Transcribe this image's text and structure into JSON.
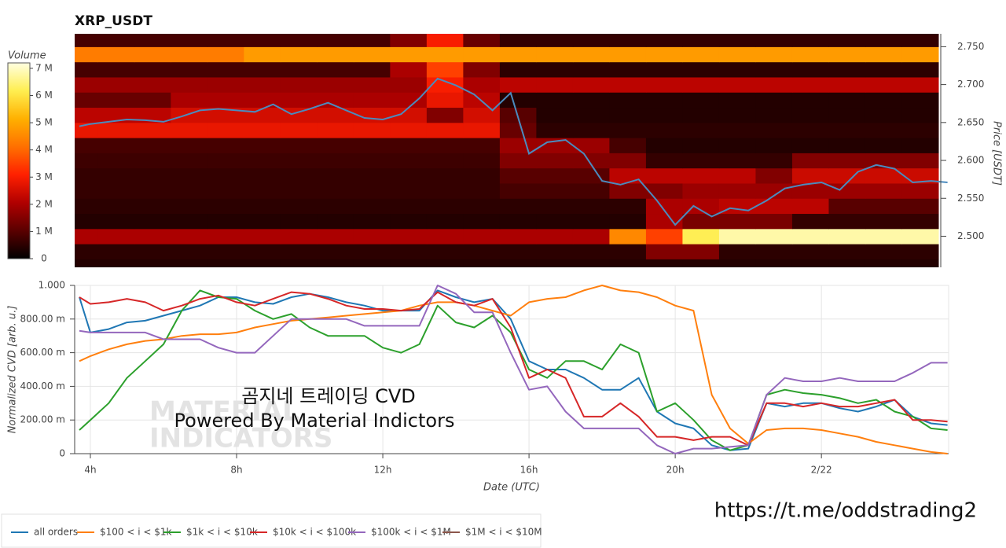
{
  "chart_data": [
    {
      "type": "heatmap",
      "title": "XRP_USDT",
      "colorbar_label": "Volume",
      "y_label": "Price [USDT]",
      "x_bins": [
        3.2,
        4.2,
        5.2,
        6.2,
        7.2,
        8.2,
        9.2,
        10.2,
        11.2,
        12.2,
        13.2,
        14.2,
        15.2,
        16.2,
        17.2,
        18.2,
        19.2,
        20.2,
        21.2,
        22.2,
        23.2,
        24.2,
        25.2,
        26.2,
        27.2
      ],
      "y_bins": [
        2.45,
        2.47,
        2.49,
        2.51,
        2.53,
        2.55,
        2.57,
        2.59,
        2.61,
        2.63,
        2.65,
        2.67,
        2.69,
        2.71,
        2.73,
        2.75,
        2.77
      ],
      "z": [
        [
          400000.0,
          400000.0,
          400000.0,
          400000.0,
          400000.0,
          400000.0,
          400000.0,
          400000.0,
          400000.0,
          400000.0,
          400000.0,
          400000.0,
          400000.0,
          400000.0,
          400000.0,
          400000.0,
          400000.0,
          400000.0,
          400000.0,
          400000.0,
          400000.0,
          400000.0,
          400000.0,
          400000.0
        ],
        [
          500000.0,
          500000.0,
          500000.0,
          500000.0,
          500000.0,
          500000.0,
          500000.0,
          500000.0,
          500000.0,
          500000.0,
          500000.0,
          500000.0,
          500000.0,
          500000.0,
          500000.0,
          500000.0,
          1500000.0,
          1500000.0,
          500000.0,
          500000.0,
          500000.0,
          500000.0,
          500000.0,
          500000.0
        ],
        [
          2000000.0,
          2000000.0,
          2000000.0,
          2000000.0,
          2000000.0,
          2000000.0,
          2000000.0,
          2000000.0,
          2000000.0,
          2000000.0,
          2000000.0,
          2000000.0,
          2000000.0,
          2000000.0,
          2000000.0,
          4500000.0,
          3500000.0,
          6200000.0,
          6800000.0,
          6800000.0,
          6800000.0,
          6800000.0,
          6800000.0,
          6800000.0
        ],
        [
          400000.0,
          400000.0,
          400000.0,
          400000.0,
          400000.0,
          400000.0,
          400000.0,
          400000.0,
          400000.0,
          400000.0,
          400000.0,
          400000.0,
          400000.0,
          400000.0,
          400000.0,
          400000.0,
          2000000.0,
          1400000.0,
          1400000.0,
          1400000.0,
          600000.0,
          600000.0,
          600000.0,
          600000.0
        ],
        [
          500000.0,
          500000.0,
          500000.0,
          500000.0,
          500000.0,
          500000.0,
          500000.0,
          500000.0,
          500000.0,
          500000.0,
          500000.0,
          500000.0,
          500000.0,
          500000.0,
          500000.0,
          500000.0,
          2000000.0,
          2000000.0,
          2200000.0,
          2200000.0,
          2200000.0,
          1000000.0,
          1000000.0,
          1000000.0
        ],
        [
          600000.0,
          600000.0,
          600000.0,
          600000.0,
          600000.0,
          600000.0,
          600000.0,
          600000.0,
          600000.0,
          600000.0,
          600000.0,
          600000.0,
          800000.0,
          800000.0,
          800000.0,
          1500000.0,
          1500000.0,
          1800000.0,
          1800000.0,
          1800000.0,
          1800000.0,
          1800000.0,
          1800000.0,
          1800000.0
        ],
        [
          600000.0,
          600000.0,
          600000.0,
          600000.0,
          600000.0,
          600000.0,
          600000.0,
          600000.0,
          600000.0,
          600000.0,
          600000.0,
          600000.0,
          1000000.0,
          1000000.0,
          1000000.0,
          2200000.0,
          2200000.0,
          2200000.0,
          2200000.0,
          1500000.0,
          2400000.0,
          2400000.0,
          2400000.0,
          2400000.0
        ],
        [
          700000.0,
          700000.0,
          700000.0,
          700000.0,
          700000.0,
          700000.0,
          700000.0,
          700000.0,
          700000.0,
          700000.0,
          700000.0,
          700000.0,
          1500000.0,
          1500000.0,
          1500000.0,
          1500000.0,
          600000.0,
          600000.0,
          600000.0,
          600000.0,
          1500000.0,
          1500000.0,
          1500000.0,
          1500000.0
        ],
        [
          800000.0,
          800000.0,
          800000.0,
          800000.0,
          800000.0,
          800000.0,
          800000.0,
          800000.0,
          800000.0,
          800000.0,
          800000.0,
          800000.0,
          1800000.0,
          1800000.0,
          1800000.0,
          800000.0,
          400000.0,
          400000.0,
          400000.0,
          400000.0,
          400000.0,
          400000.0,
          400000.0,
          400000.0
        ],
        [
          2800000.0,
          2800000.0,
          2800000.0,
          2800000.0,
          2800000.0,
          2800000.0,
          2800000.0,
          2800000.0,
          2800000.0,
          2800000.0,
          2800000.0,
          2800000.0,
          1200000.0,
          500000.0,
          500000.0,
          500000.0,
          500000.0,
          500000.0,
          500000.0,
          500000.0,
          500000.0,
          500000.0,
          500000.0,
          500000.0
        ],
        [
          2200000.0,
          2200000.0,
          2200000.0,
          2500000.0,
          2500000.0,
          2500000.0,
          2500000.0,
          2500000.0,
          2500000.0,
          2500000.0,
          1500000.0,
          2500000.0,
          1000000.0,
          400000.0,
          400000.0,
          400000.0,
          400000.0,
          400000.0,
          400000.0,
          400000.0,
          400000.0,
          400000.0,
          400000.0,
          400000.0
        ],
        [
          1200000.0,
          1200000.0,
          1200000.0,
          2000000.0,
          2000000.0,
          2000000.0,
          2000000.0,
          2000000.0,
          2000000.0,
          2000000.0,
          2800000.0,
          2200000.0,
          400000.0,
          400000.0,
          400000.0,
          400000.0,
          400000.0,
          400000.0,
          400000.0,
          400000.0,
          400000.0,
          400000.0,
          400000.0,
          400000.0
        ],
        [
          1800000.0,
          1800000.0,
          1800000.0,
          1800000.0,
          1800000.0,
          1800000.0,
          1800000.0,
          1800000.0,
          1800000.0,
          1800000.0,
          3000000.0,
          2000000.0,
          2200000.0,
          2200000.0,
          2200000.0,
          2200000.0,
          2200000.0,
          2200000.0,
          2200000.0,
          2200000.0,
          2200000.0,
          2200000.0,
          2200000.0,
          2200000.0
        ],
        [
          800000.0,
          800000.0,
          800000.0,
          800000.0,
          800000.0,
          800000.0,
          800000.0,
          800000.0,
          800000.0,
          2000000.0,
          3500000.0,
          1500000.0,
          500000.0,
          500000.0,
          500000.0,
          500000.0,
          500000.0,
          500000.0,
          500000.0,
          500000.0,
          500000.0,
          500000.0,
          500000.0,
          500000.0
        ],
        [
          4300000.0,
          4300000.0,
          4300000.0,
          4300000.0,
          4300000.0,
          4800000.0,
          4800000.0,
          4800000.0,
          4800000.0,
          4800000.0,
          4800000.0,
          4800000.0,
          4800000.0,
          4800000.0,
          4800000.0,
          4800000.0,
          4800000.0,
          4800000.0,
          4800000.0,
          4800000.0,
          4800000.0,
          4800000.0,
          4800000.0,
          4800000.0
        ],
        [
          800000.0,
          800000.0,
          800000.0,
          800000.0,
          800000.0,
          800000.0,
          800000.0,
          800000.0,
          800000.0,
          1500000.0,
          3000000.0,
          1200000.0,
          600000.0,
          600000.0,
          600000.0,
          600000.0,
          600000.0,
          600000.0,
          600000.0,
          600000.0,
          600000.0,
          600000.0,
          600000.0,
          600000.0
        ]
      ],
      "colors": [
        "#000000",
        "#5a0000",
        "#b00000",
        "#ff2000",
        "#ff7000",
        "#ffb000",
        "#ffee50",
        "#ffffe0"
      ],
      "clim": [
        0,
        7200000.0
      ],
      "cticks": [
        0,
        {
          "value": 1000000.0,
          "label": "1 M"
        },
        {
          "value": 2000000.0,
          "label": "2 M"
        },
        {
          "value": 3000000.0,
          "label": "3 M"
        },
        {
          "value": 4000000.0,
          "label": "4 M"
        },
        {
          "value": 5000000.0,
          "label": "5 M"
        },
        {
          "value": 6000000.0,
          "label": "6 M"
        },
        {
          "value": 7000000.0,
          "label": "7 M"
        }
      ],
      "xlim": [
        3.57,
        27.48
      ],
      "ylim": [
        2.459,
        2.767
      ],
      "yticks": [
        {
          "value": 2.5,
          "label": "2.500"
        },
        {
          "value": 2.55,
          "label": "2.550"
        },
        {
          "value": 2.6,
          "label": "2.600"
        },
        {
          "value": 2.65,
          "label": "2.650"
        },
        {
          "value": 2.7,
          "label": "2.700"
        },
        {
          "value": 2.75,
          "label": "2.750"
        }
      ],
      "line": {
        "color": "#4b8bbe",
        "x": [
          3.7,
          4,
          4.5,
          5,
          5.5,
          6,
          6.5,
          7,
          7.5,
          8,
          8.5,
          9,
          9.5,
          10,
          10.5,
          11,
          11.5,
          12,
          12.5,
          13,
          13.5,
          14,
          14.5,
          15,
          15.5,
          16,
          16.5,
          17,
          17.5,
          18,
          18.5,
          19,
          19.5,
          20,
          20.5,
          21,
          21.5,
          22,
          22.5,
          23,
          23.5,
          24,
          24.5,
          25,
          25.5,
          26,
          26.5,
          27,
          27.45
        ],
        "values": [
          2.645,
          2.648,
          2.651,
          2.654,
          2.653,
          2.651,
          2.658,
          2.666,
          2.668,
          2.666,
          2.664,
          2.674,
          2.661,
          2.668,
          2.676,
          2.666,
          2.656,
          2.654,
          2.661,
          2.682,
          2.708,
          2.699,
          2.687,
          2.666,
          2.689,
          2.609,
          2.624,
          2.627,
          2.609,
          2.573,
          2.568,
          2.575,
          2.547,
          2.515,
          2.54,
          2.526,
          2.537,
          2.534,
          2.547,
          2.563,
          2.568,
          2.571,
          2.561,
          2.585,
          2.594,
          2.589,
          2.571,
          2.573,
          2.571
        ]
      }
    },
    {
      "type": "line",
      "x_label": "Date (UTC)",
      "y_label": "Normalized CVD [arb. u.]",
      "x": [
        3.7,
        4,
        4.5,
        5,
        5.5,
        6,
        6.5,
        7,
        7.5,
        8,
        8.5,
        9,
        9.5,
        10,
        10.5,
        11,
        11.5,
        12,
        12.5,
        13,
        13.5,
        14,
        14.5,
        15,
        15.5,
        16,
        16.5,
        17,
        17.5,
        18,
        18.5,
        19,
        19.5,
        20,
        20.5,
        21,
        21.5,
        22,
        22.5,
        23,
        23.5,
        24,
        24.5,
        25,
        25.5,
        26,
        26.5,
        27,
        27.45
      ],
      "xlim": [
        3.57,
        27.48
      ],
      "ylim": [
        0,
        1
      ],
      "xticks": [
        {
          "value": 4,
          "label": "4h"
        },
        {
          "value": 8,
          "label": "8h"
        },
        {
          "value": 12,
          "label": "12h"
        },
        {
          "value": 16,
          "label": "16h"
        },
        {
          "value": 20,
          "label": "20h"
        },
        {
          "value": 24,
          "label": "2/22"
        }
      ],
      "yticks": [
        0,
        {
          "value": 0.2,
          "label": "200.00 m"
        },
        {
          "value": 0.4,
          "label": "400.00 m"
        },
        {
          "value": 0.6,
          "label": "600.00 m"
        },
        {
          "value": 0.8,
          "label": "800.00 m"
        },
        {
          "value": 1,
          "label": "1.000"
        }
      ],
      "grid": true,
      "legend": "bottom-left",
      "series": [
        {
          "name": "all orders",
          "color": "#1f77b4",
          "values": [
            0.93,
            0.72,
            0.74,
            0.78,
            0.79,
            0.82,
            0.85,
            0.88,
            0.93,
            0.93,
            0.9,
            0.89,
            0.93,
            0.95,
            0.93,
            0.9,
            0.88,
            0.85,
            0.85,
            0.85,
            0.97,
            0.93,
            0.9,
            0.92,
            0.8,
            0.55,
            0.5,
            0.5,
            0.45,
            0.38,
            0.38,
            0.45,
            0.25,
            0.18,
            0.15,
            0.05,
            0.02,
            0.03,
            0.3,
            0.28,
            0.3,
            0.3,
            0.27,
            0.25,
            0.28,
            0.32,
            0.22,
            0.18,
            0.17
          ]
        },
        {
          "name": "$100 < i < $1k",
          "color": "#ff7f0e",
          "values": [
            0.55,
            0.58,
            0.62,
            0.65,
            0.67,
            0.68,
            0.7,
            0.71,
            0.71,
            0.72,
            0.75,
            0.77,
            0.79,
            0.8,
            0.81,
            0.82,
            0.83,
            0.84,
            0.85,
            0.88,
            0.9,
            0.9,
            0.88,
            0.85,
            0.82,
            0.9,
            0.92,
            0.93,
            0.97,
            1,
            0.97,
            0.96,
            0.93,
            0.88,
            0.85,
            0.35,
            0.15,
            0.06,
            0.14,
            0.15,
            0.15,
            0.14,
            0.12,
            0.1,
            0.07,
            0.05,
            0.03,
            0.01,
            0
          ]
        },
        {
          "name": "$1k < i < $10k",
          "color": "#2ca02c",
          "values": [
            0.14,
            0.2,
            0.3,
            0.45,
            0.55,
            0.65,
            0.85,
            0.97,
            0.93,
            0.92,
            0.85,
            0.8,
            0.83,
            0.75,
            0.7,
            0.7,
            0.7,
            0.63,
            0.6,
            0.65,
            0.88,
            0.78,
            0.75,
            0.82,
            0.72,
            0.5,
            0.45,
            0.55,
            0.55,
            0.5,
            0.65,
            0.6,
            0.25,
            0.3,
            0.2,
            0.08,
            0.02,
            0.05,
            0.35,
            0.38,
            0.36,
            0.35,
            0.33,
            0.3,
            0.32,
            0.25,
            0.22,
            0.15,
            0.14
          ]
        },
        {
          "name": "$10k < i < $100k",
          "color": "#d62728",
          "values": [
            0.93,
            0.89,
            0.9,
            0.92,
            0.9,
            0.85,
            0.88,
            0.92,
            0.94,
            0.9,
            0.88,
            0.92,
            0.96,
            0.95,
            0.92,
            0.88,
            0.86,
            0.86,
            0.85,
            0.86,
            0.96,
            0.9,
            0.88,
            0.92,
            0.75,
            0.45,
            0.5,
            0.45,
            0.22,
            0.22,
            0.3,
            0.22,
            0.1,
            0.1,
            0.08,
            0.1,
            0.1,
            0.05,
            0.3,
            0.3,
            0.28,
            0.3,
            0.28,
            0.28,
            0.3,
            0.32,
            0.2,
            0.2,
            0.19
          ]
        },
        {
          "name": "$100k < i < $1M",
          "color": "#9467bd",
          "values": [
            0.73,
            0.72,
            0.72,
            0.72,
            0.72,
            0.68,
            0.68,
            0.68,
            0.63,
            0.6,
            0.6,
            0.7,
            0.8,
            0.8,
            0.8,
            0.8,
            0.76,
            0.76,
            0.76,
            0.76,
            1,
            0.95,
            0.84,
            0.84,
            0.6,
            0.38,
            0.4,
            0.25,
            0.15,
            0.15,
            0.15,
            0.15,
            0.05,
            0,
            0.03,
            0.03,
            0.04,
            0.05,
            0.35,
            0.45,
            0.43,
            0.43,
            0.45,
            0.43,
            0.43,
            0.43,
            0.48,
            0.54,
            0.54
          ]
        },
        {
          "name": "$1M < i < $10M",
          "color": "#8c564b",
          "values": [
            null,
            null,
            null,
            null,
            null,
            null,
            null,
            null,
            null,
            null,
            null,
            null,
            null,
            null,
            null,
            null,
            null,
            null,
            null,
            null,
            null,
            null,
            null,
            null,
            null,
            null,
            null,
            null,
            null,
            null,
            null,
            null,
            null,
            null,
            null,
            null,
            null,
            null,
            null,
            null,
            null,
            null,
            null,
            null,
            null,
            null,
            null,
            null,
            null
          ]
        }
      ],
      "annotations": [
        "곰지네 트레이딩 CVD",
        "Powered By Material Indictors"
      ]
    }
  ],
  "watermark": [
    "MATERIAL",
    "INDICATORS"
  ],
  "link": "https://t.me/oddstrading2"
}
